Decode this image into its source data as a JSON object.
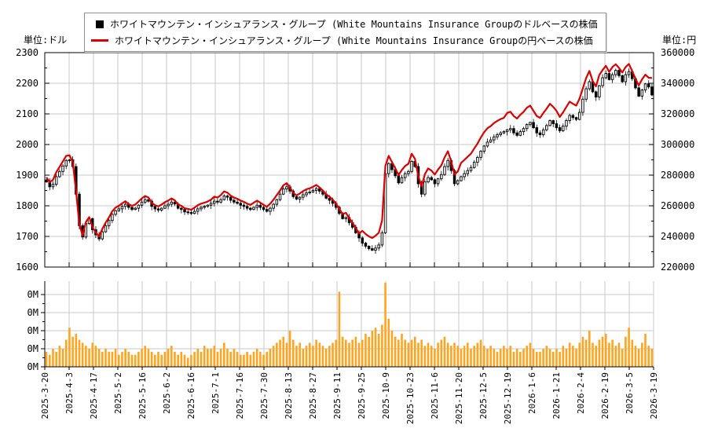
{
  "units": {
    "left": "単位:ドル",
    "right": "単位:円"
  },
  "legend": {
    "series": [
      {
        "marker": "square",
        "color": "#000000",
        "label": "ホワイトマウンテン・インシュアランス・グループ (White Mountains Insurance Groupのドルベースの株価"
      },
      {
        "marker": "line",
        "color": "#dd0000",
        "label": "ホワイトマウンテン・インシュアランス・グループ (White Mountains Insurance Groupの円ベースの株価"
      }
    ]
  },
  "chart_data": {
    "type": "candlestick+line+volume",
    "title": "",
    "x_tick_labels": [
      "2025-3-20",
      "2025-4-3",
      "2025-4-17",
      "2025-5-2",
      "2025-5-16",
      "2025-6-2",
      "2025-6-16",
      "2025-7-1",
      "2025-7-16",
      "2025-7-30",
      "2025-8-13",
      "2025-8-27",
      "2025-9-11",
      "2025-9-25",
      "2025-10-9",
      "2025-10-23",
      "2025-11-6",
      "2025-11-20",
      "2025-12-5",
      "2025-12-19",
      "2026-1-6",
      "2026-1-21",
      "2026-2-4",
      "2026-2-19",
      "2026-3-5",
      "2026-3-19"
    ],
    "axes": {
      "left": {
        "min": 1600,
        "max": 2300,
        "major_step": 100,
        "minor_step": 50,
        "tick_labels": [
          "1600",
          "1700",
          "1800",
          "1900",
          "2000",
          "2100",
          "2200",
          "2300"
        ]
      },
      "right": {
        "min": 220000,
        "max": 360000,
        "major_step": 20000,
        "minor_step": 10000,
        "tick_labels": [
          "220000",
          "240000",
          "260000",
          "280000",
          "300000",
          "320000",
          "340000",
          "360000"
        ]
      },
      "volume": {
        "min": 0,
        "max": 0.285,
        "tick_values": [
          0,
          0.06,
          0.12,
          0.18,
          0.24
        ],
        "tick_labels": [
          "0M",
          "0M",
          "0M",
          "0M",
          "0M"
        ]
      }
    },
    "grid": true,
    "legend_position": "top-center",
    "series": [
      {
        "name": "usd_close_candles",
        "axis": "left",
        "values": [
          1878,
          1862,
          1870,
          1895,
          1912,
          1930,
          1948,
          1950,
          1928,
          1838,
          1735,
          1698,
          1742,
          1758,
          1722,
          1705,
          1692,
          1715,
          1735,
          1752,
          1772,
          1784,
          1790,
          1798,
          1805,
          1795,
          1788,
          1792,
          1802,
          1812,
          1820,
          1815,
          1798,
          1790,
          1786,
          1792,
          1800,
          1805,
          1812,
          1806,
          1792,
          1788,
          1780,
          1778,
          1775,
          1782,
          1790,
          1795,
          1798,
          1802,
          1808,
          1815,
          1812,
          1820,
          1832,
          1828,
          1818,
          1812,
          1808,
          1802,
          1798,
          1792,
          1788,
          1795,
          1802,
          1795,
          1788,
          1782,
          1792,
          1805,
          1820,
          1838,
          1855,
          1862,
          1848,
          1830,
          1822,
          1828,
          1836,
          1842,
          1845,
          1850,
          1856,
          1848,
          1838,
          1825,
          1818,
          1808,
          1795,
          1775,
          1758,
          1762,
          1745,
          1730,
          1712,
          1695,
          1678,
          1668,
          1660,
          1655,
          1662,
          1672,
          1712,
          1905,
          1938,
          1918,
          1898,
          1875,
          1892,
          1905,
          1912,
          1945,
          1928,
          1872,
          1838,
          1878,
          1892,
          1885,
          1872,
          1888,
          1902,
          1928,
          1948,
          1915,
          1872,
          1882,
          1895,
          1905,
          1915,
          1925,
          1942,
          1958,
          1978,
          1995,
          2008,
          2015,
          2025,
          2032,
          2038,
          2042,
          2048,
          2052,
          2038,
          2030,
          2042,
          2052,
          2065,
          2072,
          2055,
          2038,
          2032,
          2048,
          2062,
          2078,
          2068,
          2055,
          2045,
          2060,
          2078,
          2095,
          2088,
          2082,
          2105,
          2148,
          2182,
          2205,
          2172,
          2155,
          2192,
          2218,
          2232,
          2212,
          2228,
          2242,
          2225,
          2205,
          2228,
          2238,
          2215,
          2185,
          2158,
          2178,
          2198,
          2188,
          2162
        ]
      },
      {
        "name": "jpy_close_line",
        "axis": "right",
        "values": [
          278600,
          275400,
          277000,
          282000,
          285400,
          289000,
          292600,
          293000,
          288600,
          269600,
          248000,
          240600,
          249400,
          252600,
          246000,
          242600,
          240000,
          245000,
          249000,
          252400,
          256400,
          258800,
          260000,
          261600,
          263000,
          261000,
          260000,
          260800,
          262800,
          264800,
          266400,
          265400,
          262000,
          260400,
          259600,
          260800,
          262400,
          263400,
          264800,
          263600,
          260800,
          260000,
          258400,
          258000,
          257400,
          258800,
          260400,
          261400,
          262000,
          262800,
          264000,
          266000,
          265400,
          267000,
          269400,
          268600,
          266600,
          265400,
          264600,
          263400,
          262600,
          261400,
          260600,
          262000,
          263400,
          262000,
          260600,
          259400,
          261400,
          264000,
          267000,
          270000,
          273400,
          274800,
          272000,
          268400,
          266800,
          268000,
          269600,
          270800,
          271400,
          272400,
          273600,
          272000,
          270000,
          267400,
          266000,
          264000,
          261400,
          258000,
          254600,
          255400,
          252000,
          249000,
          245400,
          242000,
          243600,
          241600,
          240000,
          239000,
          240400,
          242400,
          250400,
          286000,
          292600,
          288600,
          284600,
          280000,
          283400,
          286000,
          287400,
          294000,
          290600,
          279400,
          272600,
          280600,
          284400,
          283000,
          280400,
          283600,
          286400,
          291600,
          295600,
          289000,
          280400,
          282400,
          288000,
          290000,
          292000,
          294000,
          297400,
          300600,
          304600,
          308000,
          310600,
          312000,
          314000,
          315400,
          316600,
          317400,
          320600,
          321400,
          318600,
          317000,
          319400,
          321400,
          324000,
          325400,
          322000,
          318600,
          317400,
          320600,
          323400,
          326600,
          324600,
          322000,
          318000,
          321000,
          324600,
          328000,
          326600,
          325400,
          330000,
          336600,
          343400,
          348000,
          341400,
          338000,
          345400,
          348600,
          351400,
          347400,
          350600,
          352400,
          350000,
          347000,
          350600,
          352600,
          348000,
          343000,
          338600,
          342600,
          345600,
          343600,
          343400
        ]
      },
      {
        "name": "volume_millions",
        "axis": "volume",
        "values": [
          0.05,
          0.04,
          0.06,
          0.05,
          0.07,
          0.06,
          0.09,
          0.13,
          0.1,
          0.11,
          0.09,
          0.08,
          0.07,
          0.06,
          0.08,
          0.07,
          0.06,
          0.05,
          0.06,
          0.05,
          0.05,
          0.06,
          0.04,
          0.05,
          0.06,
          0.05,
          0.04,
          0.04,
          0.05,
          0.06,
          0.07,
          0.06,
          0.05,
          0.04,
          0.05,
          0.04,
          0.05,
          0.06,
          0.07,
          0.05,
          0.04,
          0.05,
          0.04,
          0.03,
          0.04,
          0.05,
          0.06,
          0.05,
          0.07,
          0.06,
          0.06,
          0.07,
          0.05,
          0.06,
          0.08,
          0.06,
          0.05,
          0.06,
          0.05,
          0.04,
          0.04,
          0.05,
          0.04,
          0.05,
          0.06,
          0.05,
          0.04,
          0.05,
          0.06,
          0.07,
          0.08,
          0.09,
          0.1,
          0.08,
          0.12,
          0.09,
          0.07,
          0.08,
          0.06,
          0.07,
          0.08,
          0.07,
          0.09,
          0.08,
          0.07,
          0.06,
          0.07,
          0.08,
          0.09,
          0.25,
          0.1,
          0.09,
          0.08,
          0.09,
          0.1,
          0.08,
          0.09,
          0.11,
          0.1,
          0.12,
          0.13,
          0.11,
          0.14,
          0.28,
          0.16,
          0.12,
          0.1,
          0.09,
          0.11,
          0.09,
          0.08,
          0.09,
          0.1,
          0.08,
          0.09,
          0.07,
          0.08,
          0.07,
          0.06,
          0.08,
          0.09,
          0.1,
          0.08,
          0.07,
          0.08,
          0.07,
          0.06,
          0.07,
          0.08,
          0.06,
          0.07,
          0.08,
          0.09,
          0.07,
          0.06,
          0.07,
          0.06,
          0.05,
          0.06,
          0.07,
          0.06,
          0.07,
          0.05,
          0.06,
          0.05,
          0.06,
          0.07,
          0.08,
          0.06,
          0.05,
          0.05,
          0.06,
          0.07,
          0.06,
          0.05,
          0.06,
          0.05,
          0.07,
          0.06,
          0.08,
          0.07,
          0.06,
          0.08,
          0.1,
          0.09,
          0.12,
          0.08,
          0.07,
          0.09,
          0.1,
          0.11,
          0.08,
          0.09,
          0.07,
          0.08,
          0.06,
          0.1,
          0.13,
          0.09,
          0.07,
          0.06,
          0.08,
          0.11,
          0.07,
          0.06
        ]
      }
    ],
    "colors": {
      "candle": "#000000",
      "candle_up_fill": "#ffffff",
      "line": "#dd0000",
      "volume": "#ffa41e",
      "grid": "#c8c8c8",
      "spine": "#000000"
    }
  }
}
